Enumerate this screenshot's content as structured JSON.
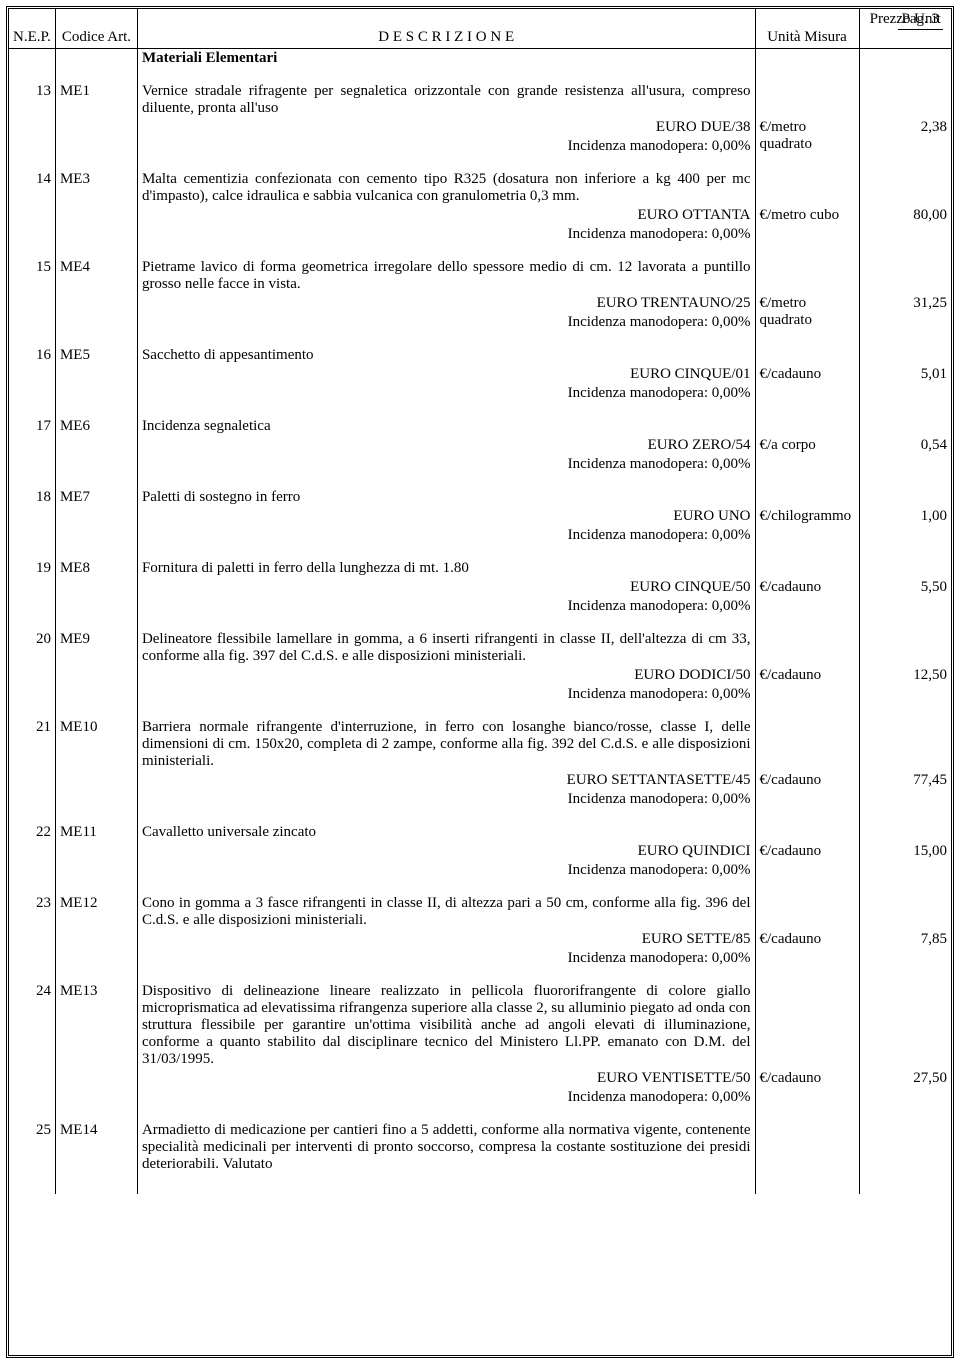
{
  "page_label": "Pag. 3",
  "headers": {
    "nep": "N.E.P.",
    "cod": "Codice Art.",
    "desc": "D E S C R I Z I O N E",
    "unit": "Unità Misura",
    "price": "Prezzo Unit"
  },
  "section_title": "Materiali Elementari",
  "rows": [
    {
      "nep": "13",
      "cod": "ME1",
      "desc": "Vernice stradale rifragente per segnaletica orizzontale con grande resistenza all'usura, compreso diluente, pronta all'uso",
      "euro_text": "EURO DUE/38",
      "incidenza": "Incidenza manodopera: 0,00%",
      "unit": "€/metro quadrato",
      "price": "2,38"
    },
    {
      "nep": "14",
      "cod": "ME3",
      "desc": "Malta cementizia confezionata con cemento tipo R325 (dosatura non inferiore a kg 400 per mc d'impasto), calce idraulica e sabbia vulcanica con granulometria 0,3 mm.",
      "euro_text": "EURO OTTANTA",
      "incidenza": "Incidenza manodopera: 0,00%",
      "unit": "€/metro cubo",
      "price": "80,00"
    },
    {
      "nep": "15",
      "cod": "ME4",
      "desc": "Pietrame lavico di forma geometrica irregolare dello spessore medio di cm. 12 lavorata a puntillo grosso nelle facce in vista.",
      "euro_text": "EURO TRENTAUNO/25",
      "incidenza": "Incidenza manodopera: 0,00%",
      "unit": "€/metro quadrato",
      "price": "31,25"
    },
    {
      "nep": "16",
      "cod": "ME5",
      "desc": "Sacchetto di appesantimento",
      "euro_text": "EURO CINQUE/01",
      "incidenza": "Incidenza manodopera: 0,00%",
      "unit": "€/cadauno",
      "price": "5,01"
    },
    {
      "nep": "17",
      "cod": "ME6",
      "desc": "Incidenza segnaletica",
      "euro_text": "EURO ZERO/54",
      "incidenza": "Incidenza manodopera: 0,00%",
      "unit": "€/a corpo",
      "price": "0,54"
    },
    {
      "nep": "18",
      "cod": "ME7",
      "desc": "Paletti di sostegno in ferro",
      "euro_text": "EURO UNO",
      "incidenza": "Incidenza manodopera: 0,00%",
      "unit": "€/chilogrammo",
      "price": "1,00"
    },
    {
      "nep": "19",
      "cod": "ME8",
      "desc": "Fornitura di paletti in ferro della lunghezza di mt. 1.80",
      "euro_text": "EURO CINQUE/50",
      "incidenza": "Incidenza manodopera: 0,00%",
      "unit": "€/cadauno",
      "price": "5,50"
    },
    {
      "nep": "20",
      "cod": "ME9",
      "desc": "Delineatore flessibile lamellare in gomma, a 6 inserti rifrangenti in classe II, dell'altezza di cm 33, conforme alla fig. 397 del C.d.S. e alle disposizioni ministeriali.",
      "euro_text": "EURO DODICI/50",
      "incidenza": "Incidenza manodopera: 0,00%",
      "unit": "€/cadauno",
      "price": "12,50"
    },
    {
      "nep": "21",
      "cod": "ME10",
      "desc": "Barriera normale rifrangente d'interruzione, in ferro con losanghe bianco/rosse, classe I, delle dimensioni di cm. 150x20, completa di 2 zampe, conforme alla fig. 392 del C.d.S. e alle disposizioni ministeriali.",
      "euro_text": "EURO SETTANTASETTE/45",
      "incidenza": "Incidenza manodopera: 0,00%",
      "unit": "€/cadauno",
      "price": "77,45"
    },
    {
      "nep": "22",
      "cod": "ME11",
      "desc": "Cavalletto universale zincato",
      "euro_text": "EURO QUINDICI",
      "incidenza": "Incidenza manodopera: 0,00%",
      "unit": "€/cadauno",
      "price": "15,00"
    },
    {
      "nep": "23",
      "cod": "ME12",
      "desc": "Cono in gomma a 3 fasce rifrangenti in classe II, di altezza pari a 50 cm, conforme alla fig. 396 del C.d.S. e alle disposizioni ministeriali.",
      "euro_text": "EURO SETTE/85",
      "incidenza": "Incidenza manodopera: 0,00%",
      "unit": "€/cadauno",
      "price": "7,85"
    },
    {
      "nep": "24",
      "cod": "ME13",
      "desc": "Dispositivo di delineazione lineare realizzato in pellicola fluororifrangente di colore giallo microprismatica ad elevatissima rifrangenza superiore alla classe 2, su alluminio piegato ad onda con struttura flessibile per garantire un'ottima visibilità anche ad angoli elevati di illuminazione, conforme a quanto stabilito dal disciplinare tecnico del Ministero Ll.PP. emanato con D.M. del 31/03/1995.",
      "euro_text": "EURO VENTISETTE/50",
      "incidenza": "Incidenza manodopera: 0,00%",
      "unit": "€/cadauno",
      "price": "27,50"
    },
    {
      "nep": "25",
      "cod": "ME14",
      "desc": "Armadietto di medicazione per cantieri fino a 5 addetti, conforme alla normativa vigente, contenente specialità medicinali per interventi di pronto soccorso, compresa la costante sostituzione dei presidi deteriorabili. Valutato",
      "euro_text": "",
      "incidenza": "",
      "unit": "",
      "price": ""
    }
  ]
}
